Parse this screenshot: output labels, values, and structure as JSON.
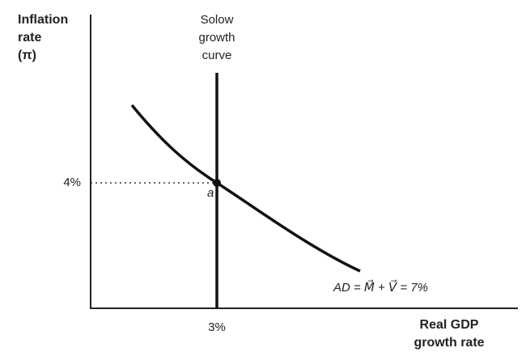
{
  "y_axis_label": [
    "Inflation",
    "rate",
    "(π)"
  ],
  "x_axis_label": [
    "Real GDP",
    "growth rate"
  ],
  "y_tick": "4%",
  "x_tick": "3%",
  "solow_label": [
    "Solow",
    "growth",
    "curve"
  ],
  "point_label": "a",
  "ad_label": "AD = M⃗ + V⃗ = 7%"
}
